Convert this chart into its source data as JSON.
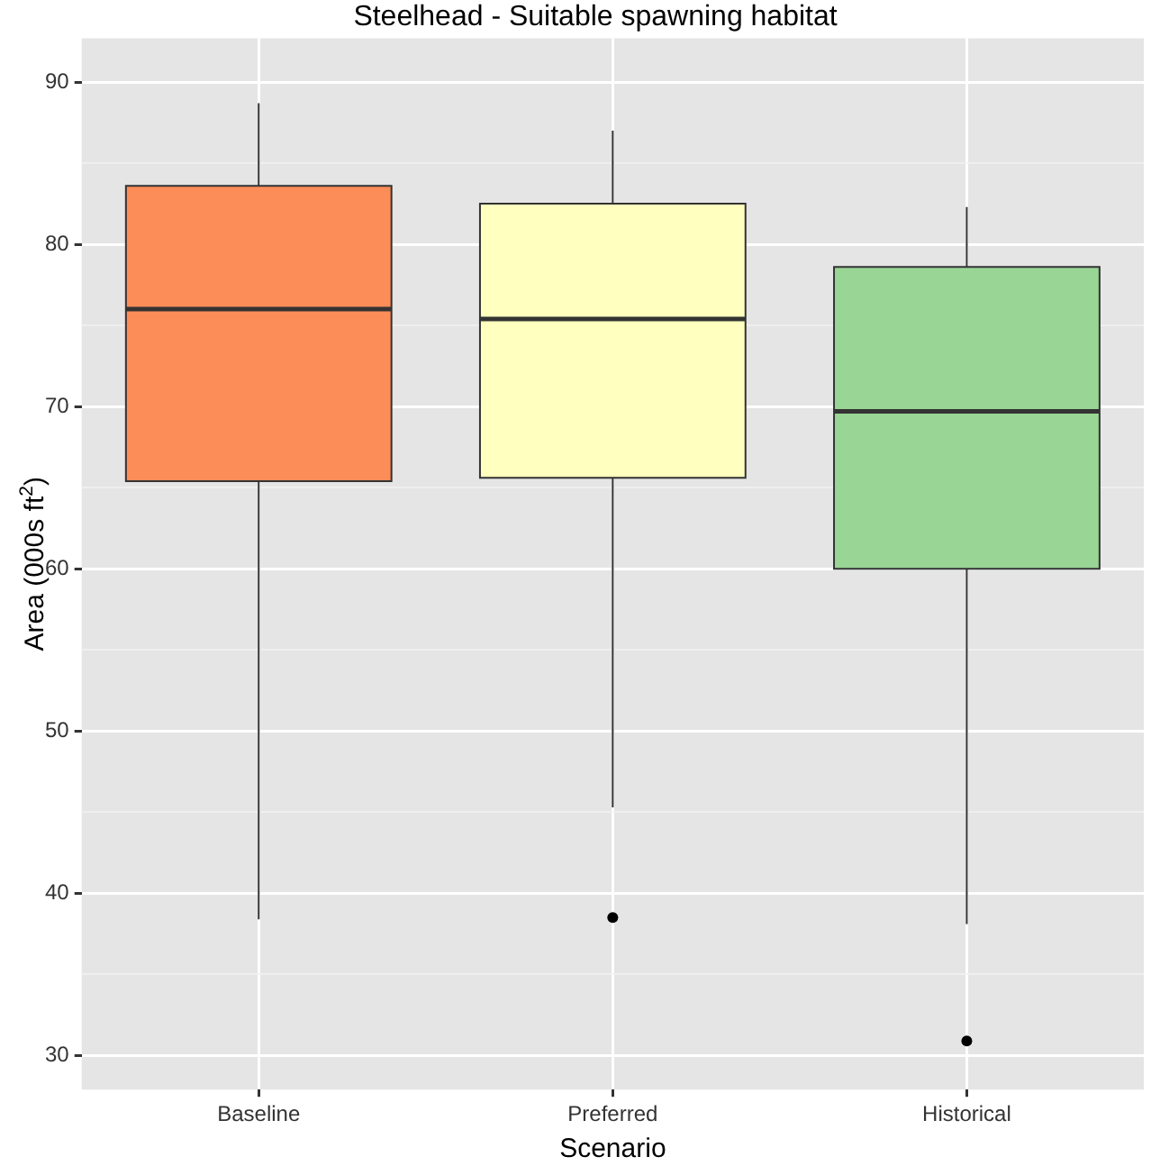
{
  "chart_data": {
    "type": "box",
    "title": "Steelhead - Suitable spawning habitat",
    "xlabel": "Scenario",
    "ylabel": "Area (000s ft$^{2}$)",
    "categories": [
      "Baseline",
      "Preferred",
      "Historical"
    ],
    "colors": [
      "#fc8d59",
      "#ffffbf",
      "#99d594"
    ],
    "boxes": [
      {
        "low": 38.4,
        "q1": 65.4,
        "median": 76.0,
        "q3": 83.6,
        "high": 88.7
      },
      {
        "low": 45.3,
        "q1": 65.6,
        "median": 75.4,
        "q3": 82.5,
        "high": 87.0,
        "outliers": [
          38.5
        ]
      },
      {
        "low": 38.1,
        "q1": 60.0,
        "median": 69.7,
        "q3": 78.6,
        "high": 82.3,
        "outliers": [
          30.9
        ]
      }
    ],
    "ylim": [
      27.9,
      92.7
    ],
    "yticks": [
      30,
      {
        "value": 35,
        "label": null
      },
      40,
      {
        "value": 45,
        "label": null
      },
      50,
      {
        "value": 55,
        "label": null
      },
      60,
      {
        "value": 65,
        "label": null
      },
      70,
      {
        "value": 75,
        "label": null
      },
      80,
      {
        "value": 85,
        "label": null
      },
      90
    ],
    "grid": true,
    "legend": false
  }
}
